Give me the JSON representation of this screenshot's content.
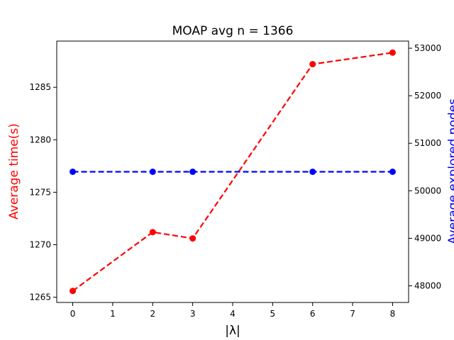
{
  "chart_data": {
    "type": "line",
    "title": "MOAP avg n = 1366",
    "xlabel": "|λ|",
    "ylabel_left": "Average time(s)",
    "ylabel_right": "Average explored nodes",
    "x": [
      0,
      2,
      3,
      6,
      8
    ],
    "xlim": [
      -0.4,
      8.4
    ],
    "xticks": [
      0,
      1,
      2,
      3,
      4,
      5,
      6,
      7,
      8
    ],
    "ylim_left": [
      1264.5,
      1289.4
    ],
    "yticks_left": [
      1265,
      1270,
      1275,
      1280,
      1285
    ],
    "ylim_right": [
      47650,
      53150
    ],
    "yticks_right": [
      48000,
      49000,
      50000,
      51000,
      52000,
      53000
    ],
    "grid": false,
    "series": [
      {
        "axis": "left",
        "color": "#ff0000",
        "style": "dashed",
        "marker": "circle",
        "values": [
          1265.6,
          1271.2,
          1270.6,
          1287.2,
          1288.3
        ]
      },
      {
        "axis": "right",
        "color": "#0000ff",
        "style": "dashed",
        "marker": "circle",
        "values": [
          50400,
          50400,
          50400,
          50400,
          50400
        ]
      }
    ]
  }
}
